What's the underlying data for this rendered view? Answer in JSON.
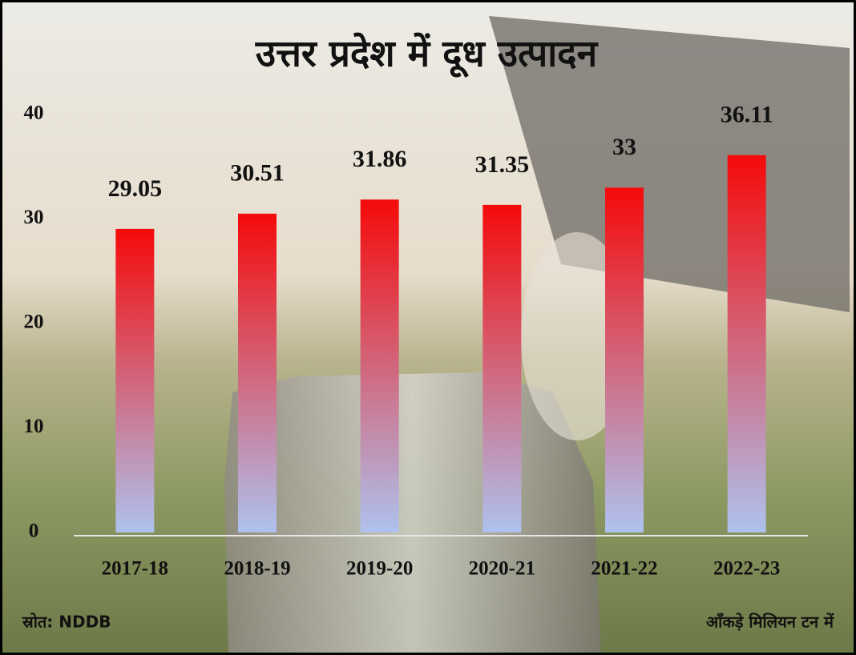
{
  "chart_data": {
    "type": "bar",
    "title": "उत्तर प्रदेश में दूध उत्पादन",
    "categories": [
      "2017-18",
      "2018-19",
      "2019-20",
      "2020-21",
      "2021-22",
      "2022-23"
    ],
    "values": [
      29.05,
      30.51,
      31.86,
      31.35,
      33,
      36.11
    ],
    "gradient": {
      "top": "#f50a0a",
      "bottom": "#aec2ee"
    },
    "ylim": [
      0,
      40
    ],
    "yticks": [
      0,
      10,
      20,
      30,
      40
    ],
    "grid": false,
    "source": "स्रोत: NDDB",
    "unit_note": "आँकड़े मिलियन टन में"
  }
}
